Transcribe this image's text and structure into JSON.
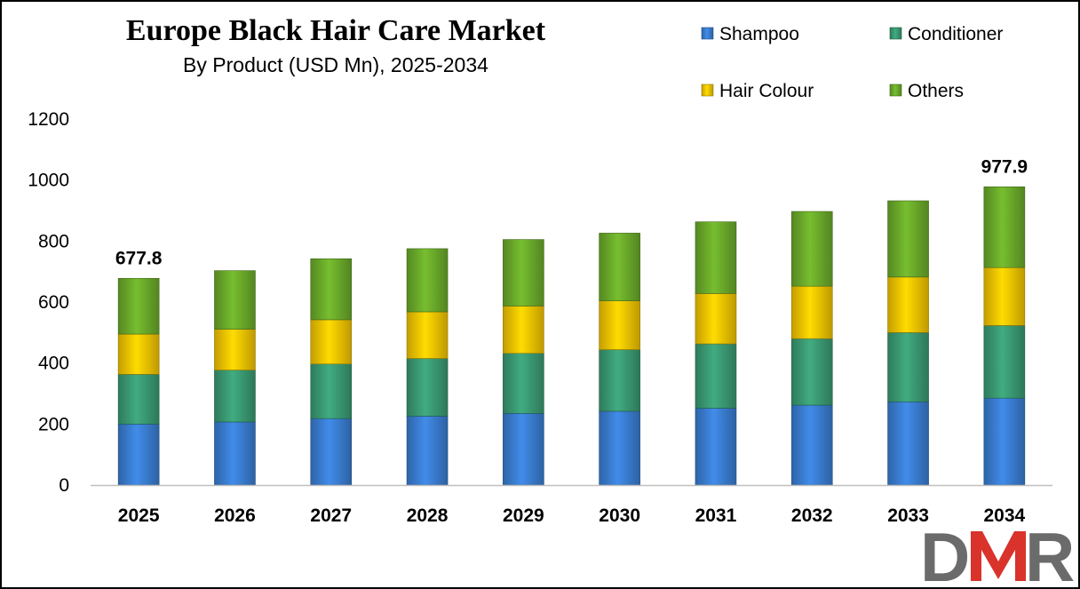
{
  "colors": {
    "shampoo": "#3a7dd1",
    "conditioner": "#3a9a72",
    "hair_colour": "#f5c400",
    "others": "#6aaa2a",
    "logo_gray": "#6b6b6b",
    "logo_red": "#d9332c"
  },
  "logo": {
    "text_d": "D",
    "text_r": "R"
  },
  "chart_data": {
    "type": "bar",
    "stacked": true,
    "title": "Europe Black Hair Care Market",
    "subtitle": "By Product (USD Mn), 2025-2034",
    "xlabel": "",
    "ylabel": "",
    "ylim": [
      0,
      1200
    ],
    "yticks": [
      0,
      200,
      400,
      600,
      800,
      1000,
      1200
    ],
    "grid": false,
    "legend_position": "top-right",
    "categories": [
      "2025",
      "2026",
      "2027",
      "2028",
      "2029",
      "2030",
      "2031",
      "2032",
      "2033",
      "2034"
    ],
    "series": [
      {
        "name": "Shampoo",
        "color_key": "shampoo",
        "values": [
          200,
          207,
          218,
          226,
          235,
          242,
          252,
          262,
          273,
          285
        ]
      },
      {
        "name": "Conditioner",
        "color_key": "conditioner",
        "values": [
          163,
          170,
          179,
          189,
          197,
          202,
          211,
          218,
          227,
          238
        ]
      },
      {
        "name": "Hair Colour",
        "color_key": "hair_colour",
        "values": [
          132,
          134,
          145,
          153,
          155,
          160,
          165,
          172,
          182,
          190
        ]
      },
      {
        "name": "Others",
        "color_key": "others",
        "values": [
          182.8,
          192,
          200,
          207,
          218,
          222,
          235,
          245,
          250,
          264.9
        ]
      }
    ],
    "data_labels": [
      {
        "category": "2025",
        "text": "677.8"
      },
      {
        "category": "2034",
        "text": "977.9"
      }
    ]
  }
}
